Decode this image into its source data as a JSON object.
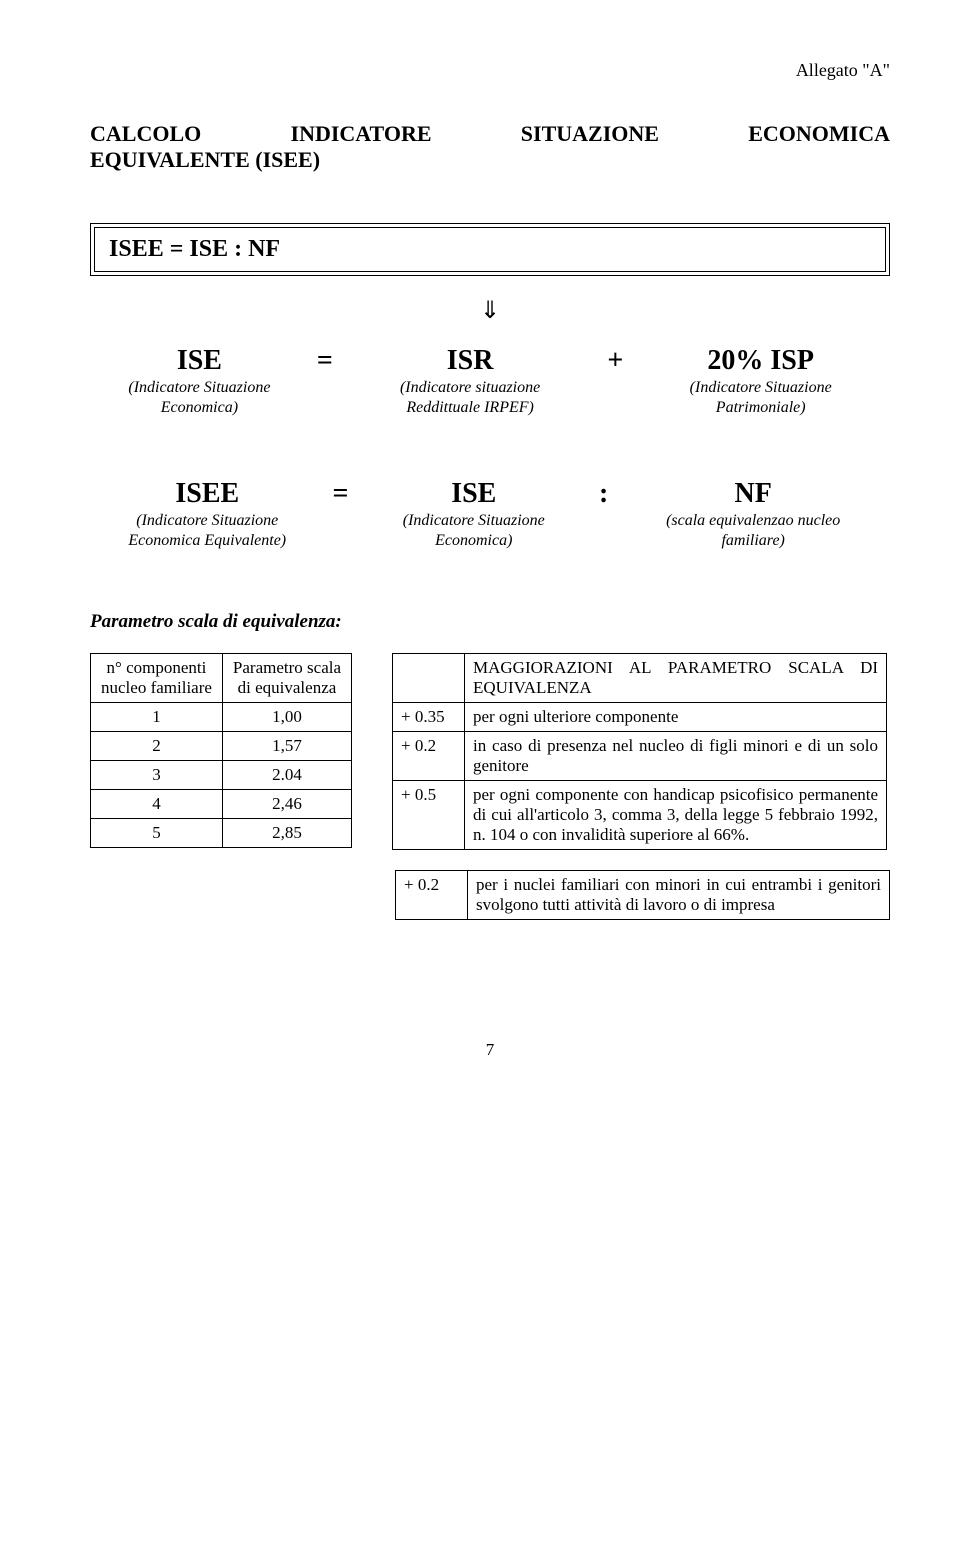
{
  "header": {
    "allegato": "Allegato \"A\""
  },
  "title": {
    "line1_w1": "CALCOLO",
    "line1_w2": "INDICATORE",
    "line1_w3": "SITUAZIONE",
    "line1_w4": "ECONOMICA",
    "line2": "EQUIVALENTE (ISEE)"
  },
  "box": {
    "formula": "ISEE = ISE : NF"
  },
  "arrow": "⇓",
  "eq1": {
    "c1": {
      "abbr": "ISE",
      "desc1": "(Indicatore Situazione",
      "desc2": "Economica)"
    },
    "sym1": "=",
    "c2": {
      "abbr": "ISR",
      "desc1": "(Indicatore situazione",
      "desc2": "Reddittuale IRPEF)"
    },
    "sym2": "+",
    "c3": {
      "abbr": "20% ISP",
      "desc1": "(Indicatore Situazione",
      "desc2": "Patrimoniale)"
    }
  },
  "eq2": {
    "c1": {
      "abbr": "ISEE",
      "desc1": "(Indicatore Situazione",
      "desc2": "Economica Equivalente)"
    },
    "sym1": "=",
    "c2": {
      "abbr": "ISE",
      "desc1": "(Indicatore Situazione",
      "desc2": "Economica)"
    },
    "sym2": ":",
    "c3": {
      "abbr": "NF",
      "desc1": "(scala equivalenzao nucleo",
      "desc2": "familiare)"
    }
  },
  "param_heading": "Parametro scala di equivalenza:",
  "param_table": {
    "h1a": "n° componenti",
    "h1b": "nucleo familiare",
    "h2a": "Parametro scala",
    "h2b": "di equivalenza",
    "rows": [
      {
        "n": "1",
        "v": "1,00"
      },
      {
        "n": "2",
        "v": "1,57"
      },
      {
        "n": "3",
        "v": "2.04"
      },
      {
        "n": "4",
        "v": "2,46"
      },
      {
        "n": "5",
        "v": "2,85"
      }
    ]
  },
  "magg": {
    "heading": "MAGGIORAZIONI AL PARAMETRO SCALA DI EQUIVALENZA",
    "rows": [
      {
        "label": "+ 0.35",
        "text": "per ogni ulteriore componente"
      },
      {
        "label": "+ 0.2",
        "text": "in caso di presenza nel nucleo di figli minori e di un solo genitore"
      },
      {
        "label": "+ 0.5",
        "text": "per ogni componente con handicap psicofisico permanente di cui all'articolo 3, comma 3, della legge 5 febbraio 1992, n. 104 o con invalidità superiore al 66%."
      }
    ],
    "extra": {
      "label": "+ 0.2",
      "text": "per i nuclei familiari con minori in cui entrambi i genitori svolgono tutti attività di lavoro o di impresa"
    }
  },
  "page_number": "7"
}
